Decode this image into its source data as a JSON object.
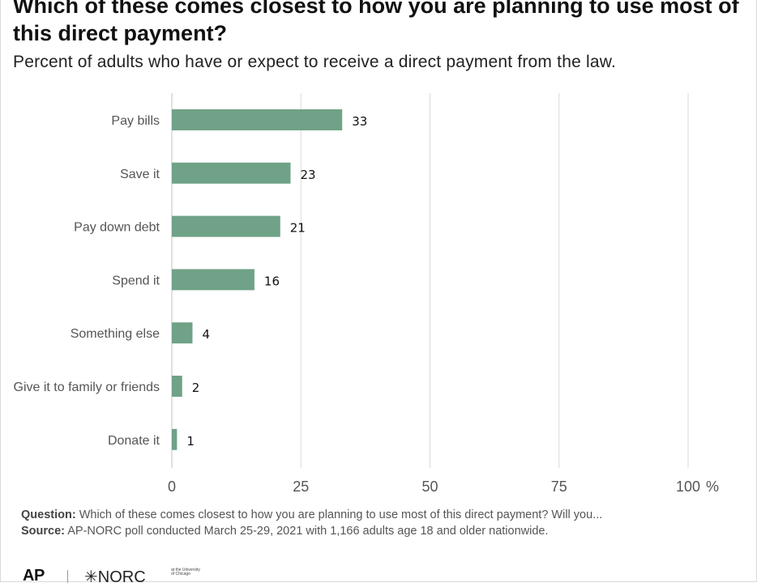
{
  "title": "Which of these comes closest to how you are planning to use most of this direct payment?",
  "subtitle": "Percent of adults who have or expect to receive a direct payment from the law.",
  "footer": {
    "question_label": "Question:",
    "question_text": " Which of these comes closest to how you are planning to use most of this direct payment? Will you...",
    "source_label": "Source:",
    "source_text": " AP-NORC poll conducted March 25-29, 2021 with 1,166 adults age 18 and older nationwide."
  },
  "logos": {
    "ap": "AP",
    "norc": "✳NORC",
    "norc_small": "at the University of Chicago"
  },
  "colors": {
    "bar": "#6fa287",
    "grid": "#d9d9d9"
  },
  "chart_data": {
    "type": "bar",
    "orientation": "horizontal",
    "categories": [
      "Pay bills",
      "Save it",
      "Pay down debt",
      "Spend it",
      "Something else",
      "Give it to family or friends",
      "Donate it"
    ],
    "values": [
      33,
      23,
      21,
      16,
      4,
      2,
      1
    ],
    "xlim": [
      0,
      100
    ],
    "xticks": [
      0,
      25,
      50,
      75,
      100
    ],
    "tick_labels": [
      "0",
      "25",
      "50",
      "75",
      "100"
    ],
    "unit": "%",
    "grid": true
  }
}
